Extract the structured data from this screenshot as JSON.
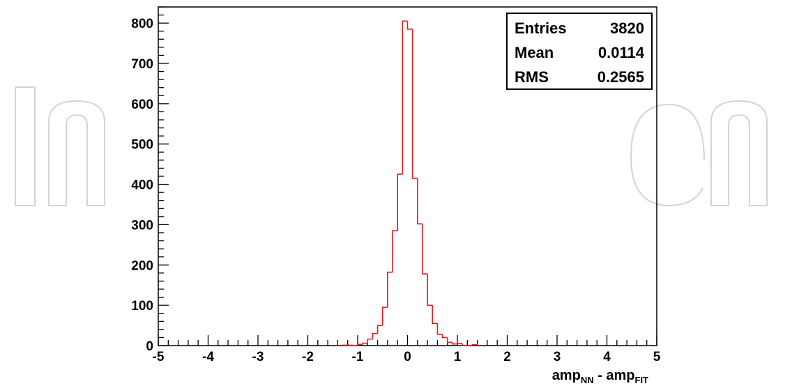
{
  "chart_data": {
    "type": "histogram",
    "title": "",
    "xlabel": {
      "parts": [
        {
          "text": "amp",
          "sub": false
        },
        {
          "text": "NN",
          "sub": true
        },
        {
          "text": " - amp",
          "sub": false
        },
        {
          "text": "FIT",
          "sub": true
        }
      ]
    },
    "ylabel": "",
    "xlim": [
      -5,
      5
    ],
    "ylim": [
      0,
      840
    ],
    "grid": false,
    "x_ticks": [
      "-5",
      "-4",
      "-3",
      "-2",
      "-1",
      "0",
      "1",
      "2",
      "3",
      "4",
      "5"
    ],
    "y_ticks": [
      "0",
      "100",
      "200",
      "300",
      "400",
      "500",
      "600",
      "700",
      "800"
    ],
    "bin_width": 0.1,
    "bins_start": -1.3,
    "counts": [
      1,
      1,
      0,
      3,
      6,
      16,
      30,
      50,
      95,
      182,
      285,
      425,
      805,
      785,
      415,
      302,
      178,
      100,
      55,
      28,
      20,
      8,
      4,
      5,
      0,
      0,
      2
    ],
    "line_color": "#e41a1c",
    "stats_box": {
      "position": "top-right",
      "rows": [
        {
          "label": "Entries",
          "value": "3820"
        },
        {
          "label": "Mean",
          "value": "0.0114"
        },
        {
          "label": "RMS",
          "value": "0.2565"
        }
      ]
    }
  }
}
